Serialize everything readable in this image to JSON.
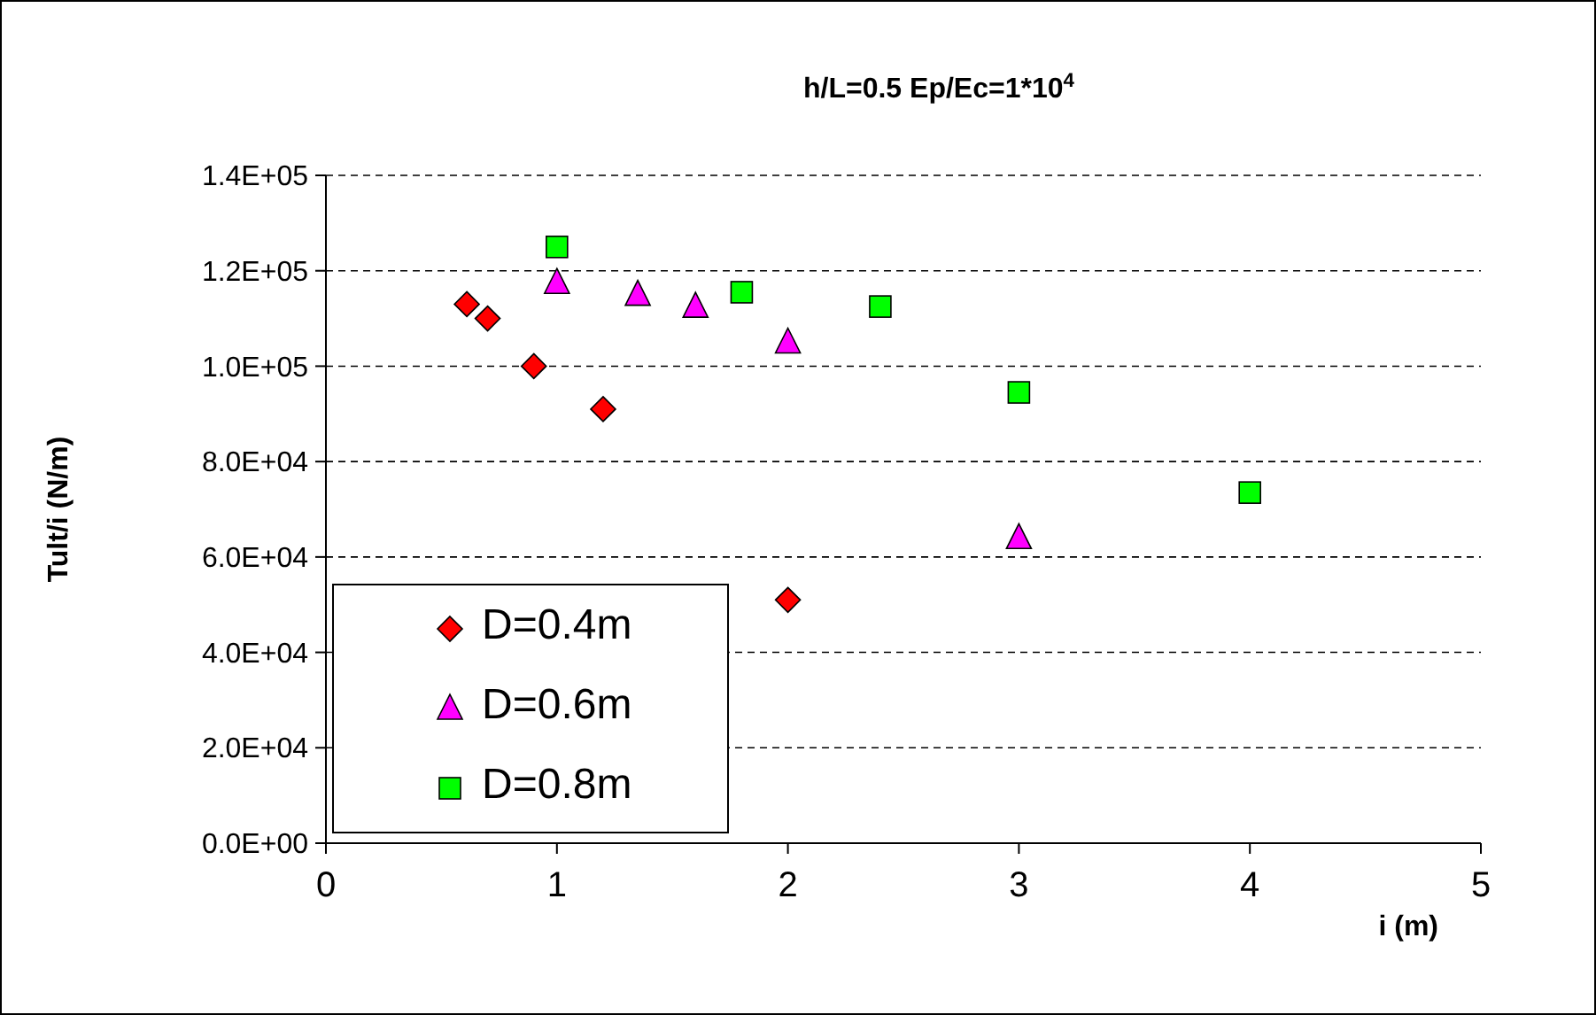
{
  "chart_data": {
    "type": "scatter",
    "title": "h/L=0.5  Ep/Ec=1*10$^{4}$",
    "xlabel": "i (m)",
    "ylabel": "Tult/i (N/m)",
    "xlim": [
      0,
      5
    ],
    "xticks": [
      0,
      1,
      2,
      3,
      4,
      5
    ],
    "ylim": [
      0,
      140000
    ],
    "yticks": [
      {
        "value": 0,
        "label": "0.0E+00"
      },
      {
        "value": 20000,
        "label": "2.0E+04"
      },
      {
        "value": 40000,
        "label": "4.0E+04"
      },
      {
        "value": 60000,
        "label": "6.0E+04"
      },
      {
        "value": 80000,
        "label": "8.0E+04"
      },
      {
        "value": 100000,
        "label": "1.0E+05"
      },
      {
        "value": 120000,
        "label": "1.2E+05"
      },
      {
        "value": 140000,
        "label": "1.4E+05"
      }
    ],
    "grid": "y",
    "legend": "bottom left",
    "series": [
      {
        "name": "D=0.4m",
        "color": "#ff0000",
        "marker": "diamond",
        "x": [
          0.61,
          0.7,
          0.9,
          1.2,
          2
        ],
        "values": [
          113000,
          110000,
          100000,
          91000,
          51000
        ]
      },
      {
        "name": "D=0.6m",
        "color": "#ff00ff",
        "marker": "triangle",
        "x": [
          1,
          1.35,
          1.6,
          2,
          3
        ],
        "values": [
          117500,
          115000,
          112500,
          105000,
          64000
        ]
      },
      {
        "name": "D=0.8m",
        "color": "#00ff00",
        "marker": "square",
        "x": [
          1,
          1.8,
          2.4,
          3,
          4
        ],
        "values": [
          125000,
          115500,
          112500,
          94500,
          73500
        ]
      }
    ]
  }
}
